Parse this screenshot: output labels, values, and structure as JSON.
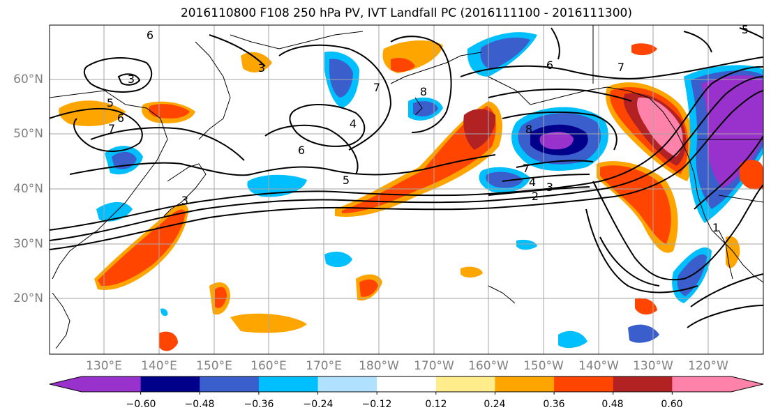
{
  "title": "2016110800 F108 250 hPa PV, IVT Landfall PC (2016111100 - 2016111300)",
  "lat_labels": [
    "60°N",
    "50°N",
    "40°N",
    "30°N",
    "20°N"
  ],
  "lon_labels": [
    "130°E",
    "140°E",
    "150°E",
    "160°E",
    "170°E",
    "180°W",
    "170°W",
    "160°W",
    "150°W",
    "140°W",
    "130°W",
    "120°W"
  ],
  "colorbar": {
    "colors": [
      "#9932CC",
      "#00008B",
      "#3A5FCD",
      "#00BFFF",
      "#B0E2FF",
      "#FFFFFF",
      "#FFEC8B",
      "#FFA500",
      "#FF4500",
      "#B22222",
      "#FF82AB"
    ],
    "tick_labels": [
      "−0.60",
      "−0.48",
      "−0.36",
      "−0.24",
      "−0.12",
      "0.12",
      "0.24",
      "0.36",
      "0.48",
      "0.60"
    ]
  },
  "contour_labels": [
    "6",
    "3",
    "5",
    "6",
    "7",
    "3",
    "7",
    "4",
    "6",
    "8",
    "6",
    "7",
    "5",
    "8",
    "7",
    "4",
    "3",
    "2",
    "5",
    "1",
    "3"
  ]
}
